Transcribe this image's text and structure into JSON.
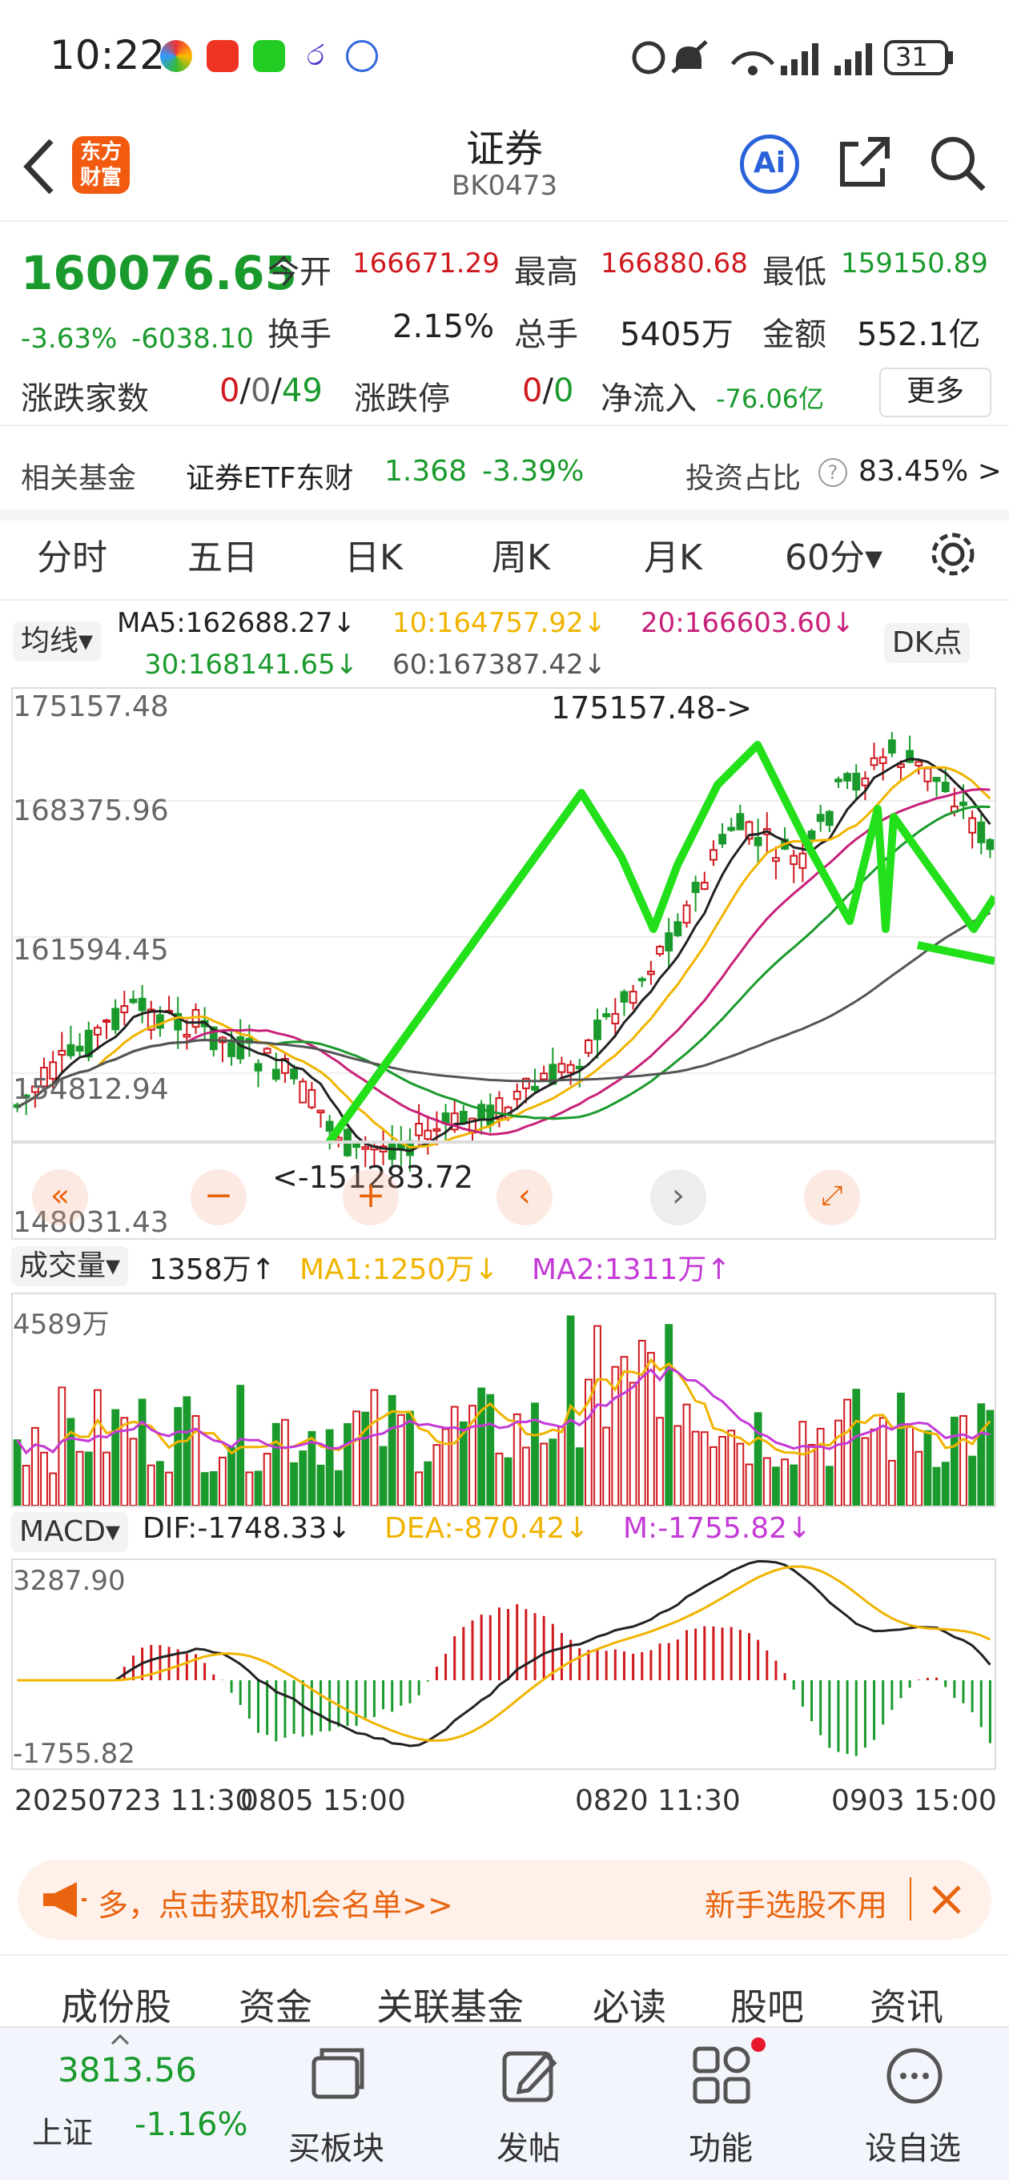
{
  "status": {
    "time": "10:22",
    "battery": "31"
  },
  "header": {
    "title": "证券",
    "code": "BK0473",
    "logo_line1": "东方",
    "logo_line2": "财富",
    "ai_label": "Ai"
  },
  "quote": {
    "price": "160076.65",
    "change_pct": "-3.63%",
    "change": "-6038.10",
    "open_label": "今开",
    "open": "166671.29",
    "high_label": "最高",
    "high": "166880.68",
    "low_label": "最低",
    "low": "159150.89",
    "turnover_label": "换手",
    "turnover": "2.15%",
    "volume_label": "总手",
    "volume": "5405万",
    "amount_label": "金额",
    "amount": "552.1亿",
    "updown_label": "涨跌家数",
    "up": "0",
    "flat": "0",
    "down": "49",
    "limit_label": "涨跌停",
    "limit_up": "0",
    "limit_down": "0",
    "inflow_label": "净流入",
    "inflow": "-76.06亿",
    "more": "更多"
  },
  "fund": {
    "label": "相关基金",
    "name": "证券ETF东财",
    "price": "1.368",
    "pct": "-3.39%",
    "ratio_label": "投资占比",
    "ratio": "83.45% >"
  },
  "tabs": [
    {
      "label": "分时"
    },
    {
      "label": "五日"
    },
    {
      "label": "日K"
    },
    {
      "label": "周K"
    },
    {
      "label": "月K"
    },
    {
      "label": "60分▾"
    }
  ],
  "ma": {
    "selector": "均线▾",
    "ma5": "MA5:162688.27↓",
    "ma10": "10:164757.92↓",
    "ma20": "20:166603.60↓",
    "ma30": "30:168141.65↓",
    "ma60": "60:167387.42↓",
    "dk": "DK点"
  },
  "kline": {
    "axis": [
      "175157.48",
      "168375.96",
      "161594.45",
      "154812.94",
      "148031.43"
    ],
    "max_label": "175157.48->",
    "min_label": "<-151283.72"
  },
  "volume": {
    "selector": "成交量▾",
    "value": "1358万↑",
    "ma1": "MA1:1250万↓",
    "ma2": "MA2:1311万↑",
    "axis_max": "4589万"
  },
  "macd": {
    "selector": "MACD▾",
    "dif": "DIF:-1748.33↓",
    "dea": "DEA:-870.42↓",
    "m": "M:-1755.82↓",
    "axis_max": "3287.90",
    "axis_min": "-1755.82"
  },
  "dates": {
    "d1": "20250723 11:30",
    "d2": "0805 15:00",
    "d3": "0820 11:30",
    "d4": "0903 15:00"
  },
  "banner": {
    "left": "多，点击获取机会名单>>",
    "right": "新手选股不用"
  },
  "bottom_tabs": [
    {
      "label": "成份股"
    },
    {
      "label": "资金"
    },
    {
      "label": "关联基金"
    },
    {
      "label": "必读"
    },
    {
      "label": "股吧"
    },
    {
      "label": "资讯"
    }
  ],
  "nav": {
    "index_value": "3813.56",
    "index_name": "上证",
    "index_pct": "-1.16%",
    "items": [
      {
        "label": "买板块"
      },
      {
        "label": "发帖"
      },
      {
        "label": "功能"
      },
      {
        "label": "设自选"
      }
    ]
  },
  "colors": {
    "up": "#d0191e",
    "down": "#1a9a2c",
    "accent": "#e8640f",
    "ma10": "#f0b400",
    "ma20": "#c8217a"
  }
}
